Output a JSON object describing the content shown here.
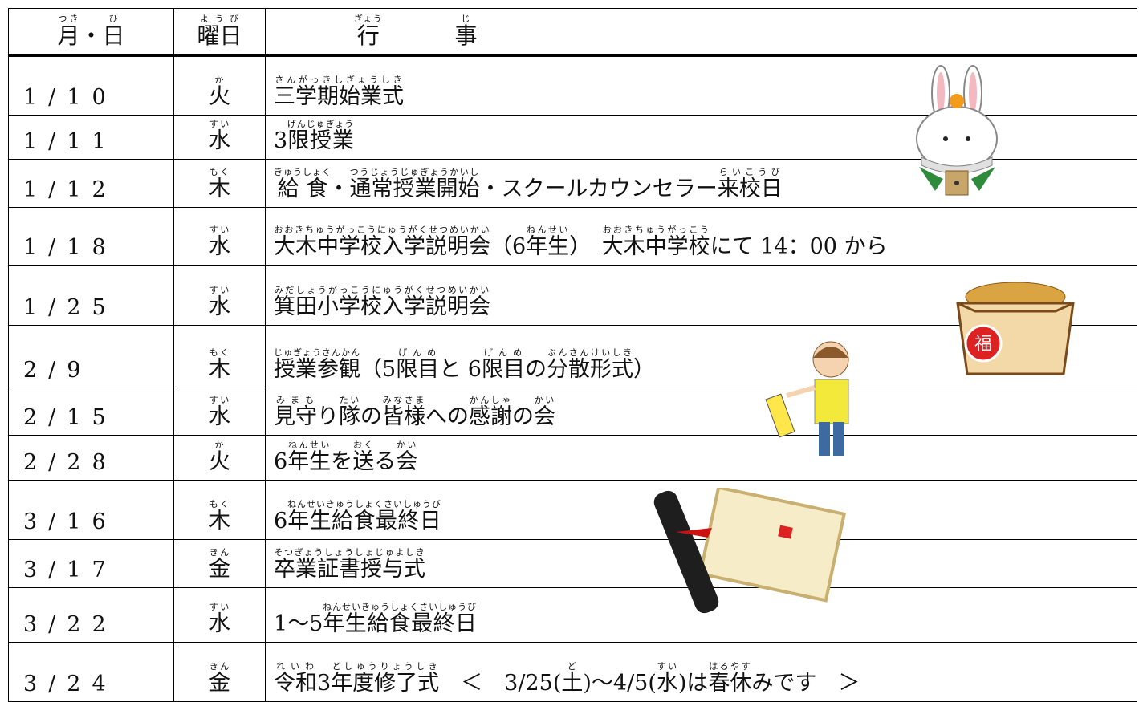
{
  "header": {
    "date": [
      {
        "text": "月",
        "ruby": "つき"
      },
      {
        "text": "・"
      },
      {
        "text": "日",
        "ruby": "ひ"
      }
    ],
    "weekday": [
      {
        "text": "曜日",
        "ruby": "ようび"
      }
    ],
    "event": [
      {
        "text": "行",
        "ruby": "ぎょう"
      },
      {
        "text": "事",
        "ruby": "じ"
      }
    ]
  },
  "rows": [
    {
      "date": "1/10",
      "weekday": {
        "text": "火",
        "ruby": "か"
      },
      "event": [
        {
          "text": "三学期始業式",
          "ruby": "さんがっきしぎょうしき"
        }
      ]
    },
    {
      "date": "1/11",
      "weekday": {
        "text": "水",
        "ruby": "すい"
      },
      "event": [
        {
          "text": "3"
        },
        {
          "text": "限授業",
          "ruby": "げんじゅぎょう"
        }
      ]
    },
    {
      "date": "1/12",
      "weekday": {
        "text": "木",
        "ruby": "もく"
      },
      "event": [
        {
          "text": "給食",
          "ruby": "きゅうしょく"
        },
        {
          "text": "・"
        },
        {
          "text": "通常授業開始",
          "ruby": "つうじょうじゅぎょうかいし"
        },
        {
          "text": "・スクールカウンセラー"
        },
        {
          "text": "来校日",
          "ruby": "らいこうび"
        }
      ]
    },
    {
      "date": "1/18",
      "weekday": {
        "text": "水",
        "ruby": "すい"
      },
      "event": [
        {
          "text": "大木中学校入学説明会",
          "ruby": "おおきちゅうがっこうにゅうがくせつめいかい"
        },
        {
          "text": "（6"
        },
        {
          "text": "年生",
          "ruby": "ねんせい"
        },
        {
          "text": "）　"
        },
        {
          "text": "大木中学校",
          "ruby": "おおきちゅうがっこう"
        },
        {
          "text": "にて 14：00 から"
        }
      ]
    },
    {
      "date": "1/25",
      "weekday": {
        "text": "水",
        "ruby": "すい"
      },
      "event": [
        {
          "text": "箕田小学校入学説明会",
          "ruby": "みだしょうがっこうにゅうがくせつめいかい"
        }
      ]
    },
    {
      "date": "2/9",
      "weekday": {
        "text": "木",
        "ruby": "もく"
      },
      "event": [
        {
          "text": "授業参観",
          "ruby": "じゅぎょうさんかん"
        },
        {
          "text": "（5"
        },
        {
          "text": "限目",
          "ruby": "げんめ"
        },
        {
          "text": "と 6"
        },
        {
          "text": "限目",
          "ruby": "げんめ"
        },
        {
          "text": "の"
        },
        {
          "text": "分散形式",
          "ruby": "ぶんさんけいしき"
        },
        {
          "text": "）"
        }
      ]
    },
    {
      "date": "2/15",
      "weekday": {
        "text": "水",
        "ruby": "すい"
      },
      "event": [
        {
          "text": "見守",
          "ruby": "みまも"
        },
        {
          "text": "り"
        },
        {
          "text": "隊",
          "ruby": "たい"
        },
        {
          "text": "の"
        },
        {
          "text": "皆様",
          "ruby": "みなさま"
        },
        {
          "text": "への"
        },
        {
          "text": "感謝",
          "ruby": "かんしゃ"
        },
        {
          "text": "の"
        },
        {
          "text": "会",
          "ruby": "かい"
        }
      ]
    },
    {
      "date": "2/28",
      "weekday": {
        "text": "火",
        "ruby": "か"
      },
      "event": [
        {
          "text": "6"
        },
        {
          "text": "年生",
          "ruby": "ねんせい"
        },
        {
          "text": "を"
        },
        {
          "text": "送",
          "ruby": "おく"
        },
        {
          "text": "る"
        },
        {
          "text": "会",
          "ruby": "かい"
        }
      ]
    },
    {
      "date": "3/16",
      "weekday": {
        "text": "木",
        "ruby": "もく"
      },
      "event": [
        {
          "text": "6"
        },
        {
          "text": "年生給食最終日",
          "ruby": "ねんせいきゅうしょくさいしゅうび"
        }
      ]
    },
    {
      "date": "3/17",
      "weekday": {
        "text": "金",
        "ruby": "きん"
      },
      "event": [
        {
          "text": "卒業証書授与式",
          "ruby": "そつぎょうしょうしょじゅよしき"
        }
      ]
    },
    {
      "date": "3/22",
      "weekday": {
        "text": "水",
        "ruby": "すい"
      },
      "event": [
        {
          "text": "1～5"
        },
        {
          "text": "年生給食最終日",
          "ruby": "ねんせいきゅうしょくさいしゅうび"
        }
      ]
    },
    {
      "date": "3/24",
      "weekday": {
        "text": "金",
        "ruby": "きん"
      },
      "event": [
        {
          "text": "令和",
          "ruby": "れいわ"
        },
        {
          "text": "3"
        },
        {
          "text": "年度修了式",
          "ruby": "どしゅうりょうしき"
        },
        {
          "text": "　＜　3/25("
        },
        {
          "text": "土",
          "ruby": "ど"
        },
        {
          "text": ")～4/5("
        },
        {
          "text": "水",
          "ruby": "すい"
        },
        {
          "text": ")は"
        },
        {
          "text": "春休",
          "ruby": "はるやす"
        },
        {
          "text": "みです　＞"
        }
      ]
    }
  ]
}
